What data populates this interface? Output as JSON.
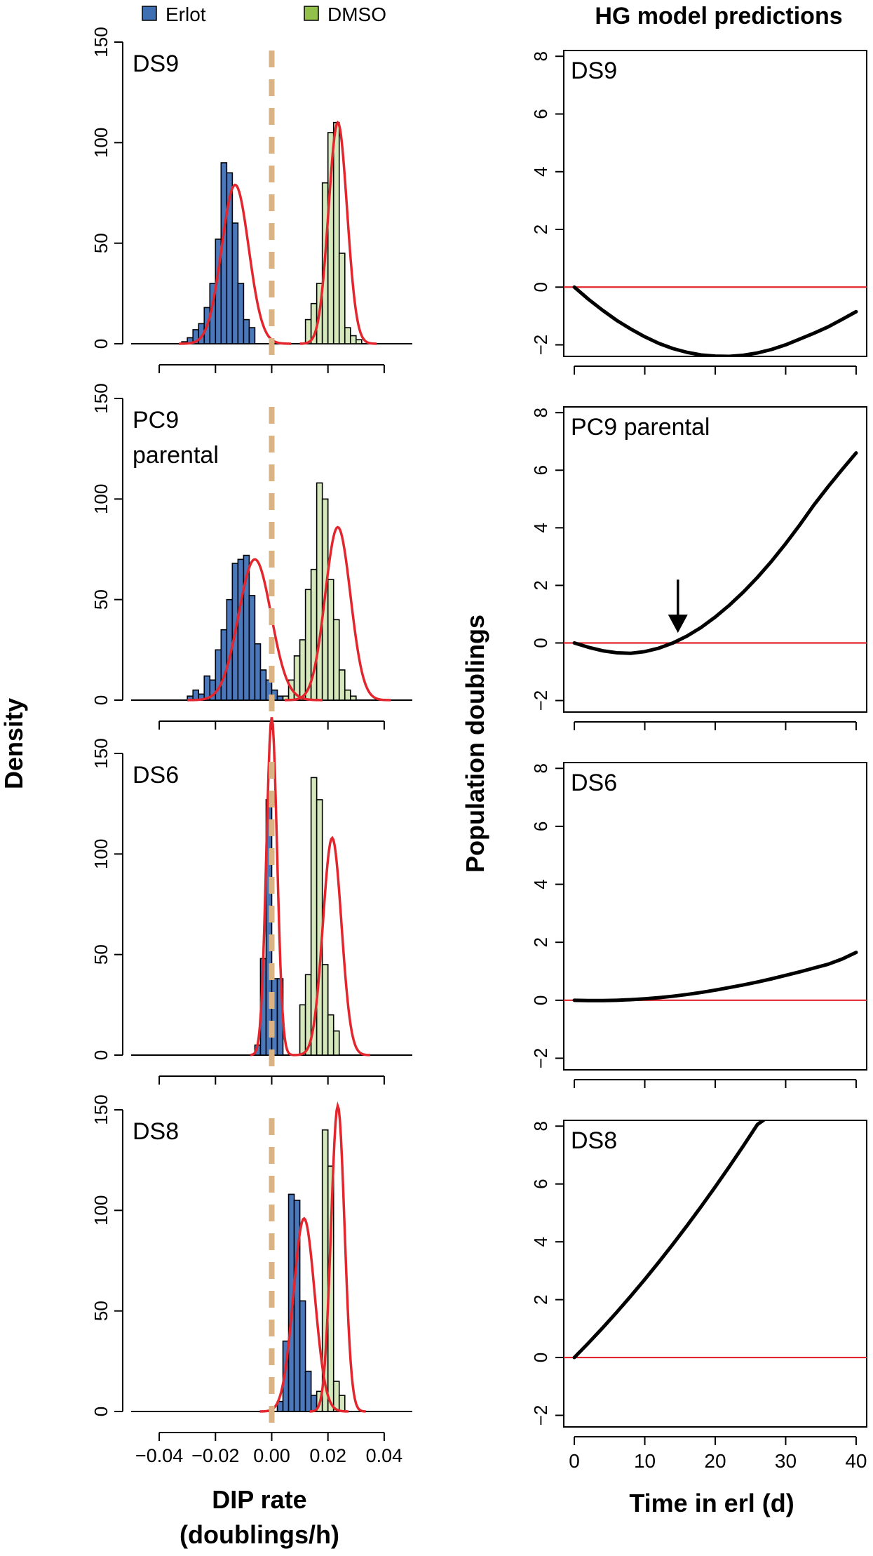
{
  "legend": {
    "items": [
      {
        "label": "Erlot",
        "color": "#3e6fb3"
      },
      {
        "label": "DMSO",
        "color": "#93c04a"
      }
    ]
  },
  "right_title": "HG model predictions",
  "left_ylabel": "Density",
  "right_ylabel": "Population doublings",
  "left_xlabel_line1": "DIP rate",
  "left_xlabel_line2": "(doublings/h)",
  "right_xlabel": "Time in erl (d)",
  "colors": {
    "erlot_fill": "#4a78bb",
    "dmso_fill": "#d5e8bc",
    "fit_curve": "#e3262d",
    "zero_line": "#d9b384",
    "model_curve": "#000000",
    "baseline": "#e3262d"
  },
  "chart_data": [
    {
      "type": "bar",
      "panel": "histogram",
      "label": "DS9",
      "xlim": [
        -0.05,
        0.05
      ],
      "ylim": [
        0,
        150
      ],
      "x_ticks": [
        -0.04,
        -0.02,
        0.0,
        0.02,
        0.04
      ],
      "x_tick_labels": [
        "−0.04",
        "−0.02",
        "0.00",
        "0.02",
        "0.04"
      ],
      "y_ticks": [
        0,
        50,
        100,
        150
      ],
      "bin_width": 0.002,
      "series": [
        {
          "name": "Erlot",
          "bins": [
            [
              -0.032,
              1
            ],
            [
              -0.03,
              3
            ],
            [
              -0.028,
              7
            ],
            [
              -0.026,
              10
            ],
            [
              -0.024,
              18
            ],
            [
              -0.022,
              30
            ],
            [
              -0.02,
              52
            ],
            [
              -0.018,
              90
            ],
            [
              -0.016,
              85
            ],
            [
              -0.014,
              60
            ],
            [
              -0.012,
              30
            ],
            [
              -0.01,
              12
            ],
            [
              -0.008,
              8
            ]
          ],
          "fit": {
            "mean": -0.013,
            "sd": 0.0048,
            "peak": 79
          }
        },
        {
          "name": "DMSO",
          "bins": [
            [
              0.012,
              12
            ],
            [
              0.014,
              20
            ],
            [
              0.016,
              30
            ],
            [
              0.018,
              80
            ],
            [
              0.02,
              105
            ],
            [
              0.022,
              110
            ],
            [
              0.024,
              45
            ],
            [
              0.026,
              8
            ],
            [
              0.028,
              4
            ],
            [
              0.03,
              2
            ]
          ],
          "fit": {
            "mean": 0.0235,
            "sd": 0.0033,
            "peak": 110
          }
        }
      ]
    },
    {
      "type": "bar",
      "panel": "histogram",
      "label": [
        "PC9",
        "parental"
      ],
      "xlim": [
        -0.05,
        0.05
      ],
      "ylim": [
        0,
        150
      ],
      "x_ticks": [
        -0.04,
        -0.02,
        0.0,
        0.02,
        0.04
      ],
      "x_tick_labels": [
        "−0.04",
        "−0.02",
        "0.00",
        "0.02",
        "0.04"
      ],
      "y_ticks": [
        0,
        50,
        100,
        150
      ],
      "bin_width": 0.002,
      "series": [
        {
          "name": "Erlot",
          "bins": [
            [
              -0.03,
              2
            ],
            [
              -0.028,
              5
            ],
            [
              -0.026,
              3
            ],
            [
              -0.024,
              12
            ],
            [
              -0.022,
              10
            ],
            [
              -0.02,
              25
            ],
            [
              -0.018,
              35
            ],
            [
              -0.016,
              50
            ],
            [
              -0.014,
              68
            ],
            [
              -0.012,
              70
            ],
            [
              -0.01,
              72
            ],
            [
              -0.008,
              52
            ],
            [
              -0.006,
              28
            ],
            [
              -0.004,
              15
            ],
            [
              -0.002,
              10
            ],
            [
              0.0,
              5
            ],
            [
              0.002,
              2
            ]
          ],
          "fit": {
            "mean": -0.006,
            "sd": 0.0058,
            "peak": 70
          }
        },
        {
          "name": "DMSO",
          "bins": [
            [
              0.004,
              2
            ],
            [
              0.006,
              10
            ],
            [
              0.008,
              22
            ],
            [
              0.01,
              30
            ],
            [
              0.012,
              55
            ],
            [
              0.014,
              65
            ],
            [
              0.016,
              108
            ],
            [
              0.018,
              100
            ],
            [
              0.02,
              60
            ],
            [
              0.022,
              40
            ],
            [
              0.024,
              15
            ],
            [
              0.026,
              5
            ],
            [
              0.028,
              2
            ]
          ],
          "fit": {
            "mean": 0.0235,
            "sd": 0.0045,
            "peak": 86
          }
        }
      ]
    },
    {
      "type": "bar",
      "panel": "histogram",
      "label": "DS6",
      "xlim": [
        -0.05,
        0.05
      ],
      "ylim": [
        0,
        150
      ],
      "x_ticks": [
        -0.04,
        -0.02,
        0.0,
        0.02,
        0.04
      ],
      "x_tick_labels": [
        "−0.04",
        "−0.02",
        "0.00",
        "0.02",
        "0.04"
      ],
      "y_ticks": [
        0,
        50,
        100,
        150
      ],
      "bin_width": 0.002,
      "series": [
        {
          "name": "Erlot",
          "bins": [
            [
              -0.006,
              5
            ],
            [
              -0.004,
              48
            ],
            [
              -0.002,
              127
            ],
            [
              0.0,
              38
            ],
            [
              0.002,
              38
            ]
          ],
          "fit": {
            "mean": 0.0,
            "sd": 0.0019,
            "peak": 168
          }
        },
        {
          "name": "DMSO",
          "bins": [
            [
              0.01,
              25
            ],
            [
              0.012,
              40
            ],
            [
              0.014,
              138
            ],
            [
              0.016,
              127
            ],
            [
              0.018,
              45
            ],
            [
              0.02,
              20
            ],
            [
              0.022,
              12
            ]
          ],
          "fit": {
            "mean": 0.0215,
            "sd": 0.0033,
            "peak": 108
          }
        }
      ]
    },
    {
      "type": "bar",
      "panel": "histogram",
      "label": "DS8",
      "xlim": [
        -0.05,
        0.05
      ],
      "ylim": [
        0,
        150
      ],
      "x_ticks": [
        -0.04,
        -0.02,
        0.0,
        0.02,
        0.04
      ],
      "x_tick_labels": [
        "−0.04",
        "−0.02",
        "0.00",
        "0.02",
        "0.04"
      ],
      "y_ticks": [
        0,
        50,
        100,
        150
      ],
      "bin_width": 0.002,
      "series": [
        {
          "name": "Erlot",
          "bins": [
            [
              0.002,
              5
            ],
            [
              0.004,
              35
            ],
            [
              0.006,
              108
            ],
            [
              0.008,
              105
            ],
            [
              0.01,
              55
            ],
            [
              0.012,
              20
            ],
            [
              0.014,
              8
            ],
            [
              0.016,
              4
            ]
          ],
          "fit": {
            "mean": 0.0115,
            "sd": 0.0038,
            "peak": 96
          }
        },
        {
          "name": "DMSO",
          "bins": [
            [
              0.016,
              10
            ],
            [
              0.018,
              140
            ],
            [
              0.02,
              122
            ],
            [
              0.022,
              15
            ],
            [
              0.024,
              8
            ]
          ],
          "fit": {
            "mean": 0.0235,
            "sd": 0.0024,
            "peak": 152
          }
        }
      ]
    },
    {
      "type": "line",
      "panel": "model",
      "label": "DS9",
      "xlim": [
        -1.5,
        41.5
      ],
      "ylim": [
        -2.4,
        8.2
      ],
      "x_ticks": [
        0,
        10,
        20,
        30,
        40
      ],
      "y_ticks": [
        -2,
        0,
        2,
        4,
        6,
        8
      ],
      "y_tick_labels": [
        "−2",
        "0",
        "2",
        "4",
        "6",
        "8"
      ],
      "curve": {
        "x": [
          0,
          2,
          4,
          6,
          8,
          10,
          12,
          14,
          16,
          18,
          20,
          22,
          24,
          26,
          28,
          30,
          32,
          34,
          36,
          38,
          40
        ],
        "y": [
          0.0,
          -0.42,
          -0.8,
          -1.15,
          -1.45,
          -1.72,
          -1.95,
          -2.13,
          -2.26,
          -2.35,
          -2.39,
          -2.4,
          -2.36,
          -2.28,
          -2.16,
          -2.0,
          -1.8,
          -1.6,
          -1.38,
          -1.12,
          -0.85
        ]
      },
      "baseline": 0,
      "arrow": null
    },
    {
      "type": "line",
      "panel": "model",
      "label": "PC9 parental",
      "xlim": [
        -1.5,
        41.5
      ],
      "ylim": [
        -2.4,
        8.2
      ],
      "x_ticks": [
        0,
        10,
        20,
        30,
        40
      ],
      "y_ticks": [
        -2,
        0,
        2,
        4,
        6,
        8
      ],
      "y_tick_labels": [
        "−2",
        "0",
        "2",
        "4",
        "6",
        "8"
      ],
      "curve": {
        "x": [
          0,
          2,
          4,
          6,
          8,
          10,
          12,
          14,
          16,
          18,
          20,
          22,
          24,
          26,
          28,
          30,
          32,
          34,
          36,
          38,
          40
        ],
        "y": [
          0.0,
          -0.15,
          -0.27,
          -0.34,
          -0.36,
          -0.3,
          -0.18,
          0.0,
          0.24,
          0.54,
          0.9,
          1.31,
          1.77,
          2.28,
          2.84,
          3.45,
          4.1,
          4.79,
          5.42,
          6.02,
          6.6
        ]
      },
      "baseline": 0,
      "arrow": {
        "x": 14.7,
        "y_from": 2.2,
        "y_to": 0.35
      }
    },
    {
      "type": "line",
      "panel": "model",
      "label": "DS6",
      "xlim": [
        -1.5,
        41.5
      ],
      "ylim": [
        -2.4,
        8.2
      ],
      "x_ticks": [
        0,
        10,
        20,
        30,
        40
      ],
      "y_ticks": [
        -2,
        0,
        2,
        4,
        6,
        8
      ],
      "y_tick_labels": [
        "−2",
        "0",
        "2",
        "4",
        "6",
        "8"
      ],
      "curve": {
        "x": [
          0,
          2,
          4,
          6,
          8,
          10,
          12,
          14,
          16,
          18,
          20,
          22,
          24,
          26,
          28,
          30,
          32,
          34,
          36,
          38,
          40
        ],
        "y": [
          0.0,
          -0.01,
          -0.01,
          0.0,
          0.02,
          0.05,
          0.09,
          0.14,
          0.2,
          0.27,
          0.35,
          0.44,
          0.53,
          0.63,
          0.74,
          0.86,
          0.98,
          1.11,
          1.24,
          1.42,
          1.65
        ]
      },
      "baseline": 0,
      "arrow": null
    },
    {
      "type": "line",
      "panel": "model",
      "label": "DS8",
      "xlim": [
        -1.5,
        41.5
      ],
      "ylim": [
        -2.4,
        8.2
      ],
      "x_ticks": [
        0,
        10,
        20,
        30,
        40
      ],
      "x_tick_labels": [
        "0",
        "10",
        "20",
        "30",
        "40"
      ],
      "y_ticks": [
        -2,
        0,
        2,
        4,
        6,
        8
      ],
      "y_tick_labels": [
        "−2",
        "0",
        "2",
        "4",
        "6",
        "8"
      ],
      "curve": {
        "x": [
          0,
          2,
          4,
          6,
          8,
          10,
          12,
          14,
          16,
          18,
          20,
          22,
          24,
          26,
          28
        ],
        "y": [
          0.0,
          0.5,
          1.02,
          1.56,
          2.12,
          2.7,
          3.3,
          3.92,
          4.56,
          5.22,
          5.9,
          6.6,
          7.32,
          8.06,
          8.4
        ]
      },
      "baseline": 0,
      "arrow": null
    }
  ]
}
